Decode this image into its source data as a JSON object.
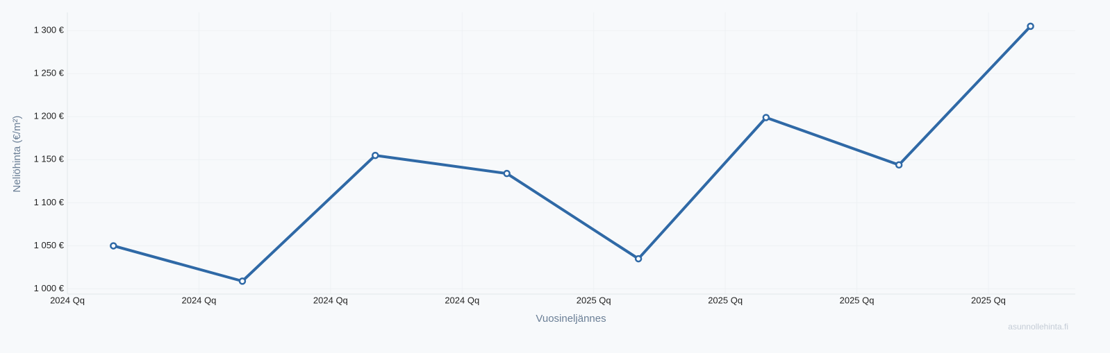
{
  "chart_data": {
    "type": "line",
    "x_label": "Vuosineljännes",
    "y_label": "Neliöhinta (€/m²)",
    "watermark": "asunnollehinta.fi",
    "x": [
      0.35,
      1.33,
      2.34,
      3.34,
      4.34,
      5.31,
      6.32,
      7.32
    ],
    "series": [
      {
        "name": "Neliöhinta",
        "color": "#2f69a6",
        "values": [
          1050,
          1009,
          1155,
          1134,
          1035,
          1199,
          1144,
          1305
        ]
      }
    ],
    "xlim": [
      0,
      7.66
    ],
    "xticks": [
      {
        "value": 0,
        "label": "2024 Qq"
      },
      {
        "value": 1,
        "label": "2024 Qq"
      },
      {
        "value": 2,
        "label": "2024 Qq"
      },
      {
        "value": 3,
        "label": "2024 Qq"
      },
      {
        "value": 4,
        "label": "2025 Qq"
      },
      {
        "value": 5,
        "label": "2025 Qq"
      },
      {
        "value": 6,
        "label": "2025 Qq"
      },
      {
        "value": 7,
        "label": "2025 Qq"
      }
    ],
    "ylim": [
      994,
      1321
    ],
    "yticks": [
      {
        "value": 1000,
        "label": "1 000 €"
      },
      {
        "value": 1050,
        "label": "1 050 €"
      },
      {
        "value": 1100,
        "label": "1 100 €"
      },
      {
        "value": 1150,
        "label": "1 150 €"
      },
      {
        "value": 1200,
        "label": "1 200 €"
      },
      {
        "value": 1250,
        "label": "1 250 €"
      },
      {
        "value": 1300,
        "label": "1 300 €"
      }
    ],
    "grid": true
  }
}
